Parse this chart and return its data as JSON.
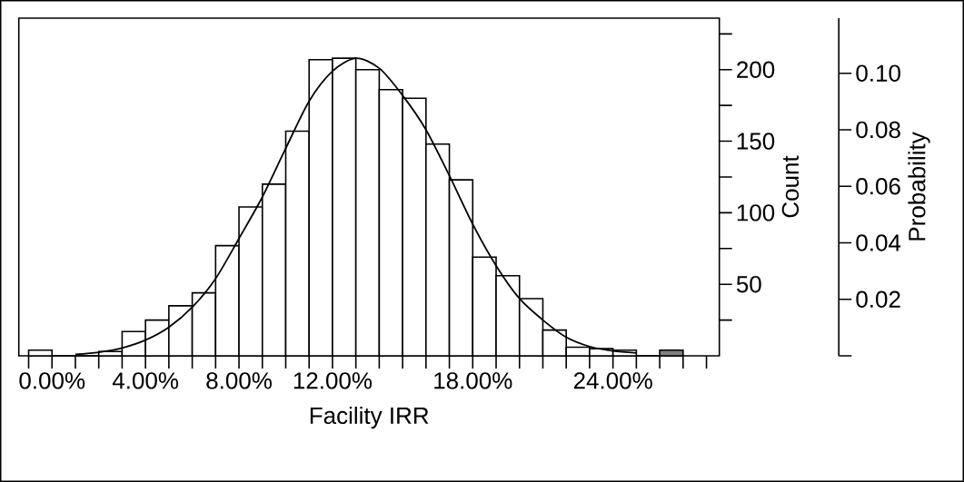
{
  "chart_data": {
    "type": "histogram",
    "bins": [
      -1,
      0,
      1,
      2,
      3,
      4,
      5,
      6,
      7,
      8,
      9,
      10,
      11,
      12,
      13,
      14,
      15,
      16,
      17,
      18,
      19,
      20,
      21,
      22,
      23,
      24,
      25,
      26,
      27
    ],
    "values": [
      4,
      0,
      0,
      3,
      17,
      25,
      35,
      44,
      77,
      104,
      120,
      157,
      207,
      208,
      200,
      186,
      180,
      148,
      123,
      69,
      56,
      40,
      18,
      6,
      5,
      4,
      0,
      4
    ],
    "colors": [
      "#ffffff",
      "#ffffff",
      "#ffffff",
      "#ffffff",
      "#ffffff",
      "#ffffff",
      "#ffffff",
      "#ffffff",
      "#ffffff",
      "#ffffff",
      "#ffffff",
      "#ffffff",
      "#ffffff",
      "#ffffff",
      "#ffffff",
      "#ffffff",
      "#ffffff",
      "#ffffff",
      "#ffffff",
      "#ffffff",
      "#ffffff",
      "#ffffff",
      "#ffffff",
      "#ffffff",
      "#ffffff",
      "#ffffff",
      "#ffffff",
      "#808080"
    ],
    "series": [
      {
        "type": "line",
        "color": "#000000",
        "x": [
          1,
          2,
          3,
          4,
          5,
          6,
          7,
          8,
          9,
          10,
          11,
          12,
          13,
          14,
          15,
          16,
          17,
          18,
          19,
          20,
          21,
          22,
          23,
          24,
          25
        ],
        "values": [
          1,
          2.5,
          5.5,
          11,
          20,
          34,
          54,
          82,
          111,
          145,
          178,
          199,
          208,
          201,
          182,
          158,
          126,
          92,
          63,
          40,
          25,
          13,
          6.5,
          3.4,
          2
        ]
      }
    ],
    "xlabel": "Facility IRR",
    "ylabel": "Count",
    "y2label": "Probability",
    "xlim": [
      -1.42,
      28.55
    ],
    "ylim": [
      0,
      236
    ],
    "y2lim": [
      0,
      0.1195
    ],
    "xticks": [
      {
        "value": -1,
        "label": null
      },
      {
        "value": 0,
        "label": "0.00%"
      },
      {
        "value": 1,
        "label": null
      },
      {
        "value": 2,
        "label": null
      },
      {
        "value": 3,
        "label": null
      },
      {
        "value": 4,
        "label": "4.00%"
      },
      {
        "value": 5,
        "label": null
      },
      {
        "value": 6,
        "label": null
      },
      {
        "value": 7,
        "label": null
      },
      {
        "value": 8,
        "label": "8.00%"
      },
      {
        "value": 9,
        "label": null
      },
      {
        "value": 10,
        "label": null
      },
      {
        "value": 11,
        "label": null
      },
      {
        "value": 12,
        "label": "12.00%"
      },
      {
        "value": 13,
        "label": null
      },
      {
        "value": 14,
        "label": null
      },
      {
        "value": 15,
        "label": null
      },
      {
        "value": 16,
        "label": null
      },
      {
        "value": 17,
        "label": null
      },
      {
        "value": 18,
        "label": "18.00%"
      },
      {
        "value": 19,
        "label": null
      },
      {
        "value": 20,
        "label": null
      },
      {
        "value": 21,
        "label": null
      },
      {
        "value": 22,
        "label": null
      },
      {
        "value": 23,
        "label": null
      },
      {
        "value": 24,
        "label": "24.00%"
      },
      {
        "value": 25,
        "label": null
      },
      {
        "value": 26,
        "label": null
      },
      {
        "value": 27,
        "label": null
      },
      {
        "value": 28,
        "label": null
      }
    ],
    "yticks": [
      {
        "value": 25,
        "label": null
      },
      50,
      {
        "value": 75,
        "label": null
      },
      100,
      {
        "value": 125,
        "label": null
      },
      150,
      {
        "value": 175,
        "label": null
      },
      200,
      {
        "value": 225,
        "label": null
      }
    ],
    "y2ticks": [
      {
        "value": 0,
        "label": null
      },
      {
        "value": 0.02,
        "label": "0.02"
      },
      {
        "value": 0.04,
        "label": "0.04"
      },
      {
        "value": 0.06,
        "label": "0.06"
      },
      {
        "value": 0.08,
        "label": "0.08"
      },
      {
        "value": 0.1,
        "label": "0.10"
      }
    ]
  }
}
